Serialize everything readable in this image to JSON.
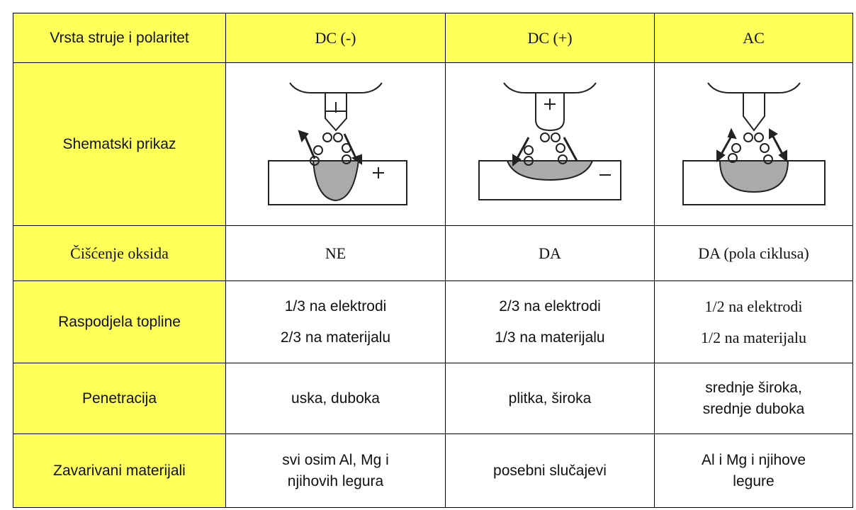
{
  "table": {
    "header": [
      "Vrsta struje i polaritet",
      "DC (-)",
      "DC (+)",
      "AC"
    ],
    "rows": [
      {
        "label": "Shematski prikaz"
      },
      {
        "label": "Čišćenje oksida",
        "cells": [
          [
            "NE"
          ],
          [
            "DA"
          ],
          [
            "DA (pola ciklusa)"
          ]
        ]
      },
      {
        "label": "Raspodjela topline",
        "cells": [
          [
            "1/3 na elektrodi",
            "2/3 na materijalu"
          ],
          [
            "2/3 na elektrodi",
            "1/3 na materijalu"
          ],
          [
            "1/2 na elektrodi",
            "1/2 na materijalu"
          ]
        ]
      },
      {
        "label": "Penetracija",
        "cells": [
          [
            "uska, duboka"
          ],
          [
            "plitka, široka"
          ],
          [
            "srednje široka,",
            "srednje duboka"
          ]
        ]
      },
      {
        "label": "Zavarivani materijali",
        "cells": [
          [
            "svi osim Al, Mg i",
            "njihovih legura"
          ],
          [
            "posebni slučajevi"
          ],
          [
            "Al i Mg i njihove",
            "legure"
          ]
        ]
      }
    ]
  }
}
